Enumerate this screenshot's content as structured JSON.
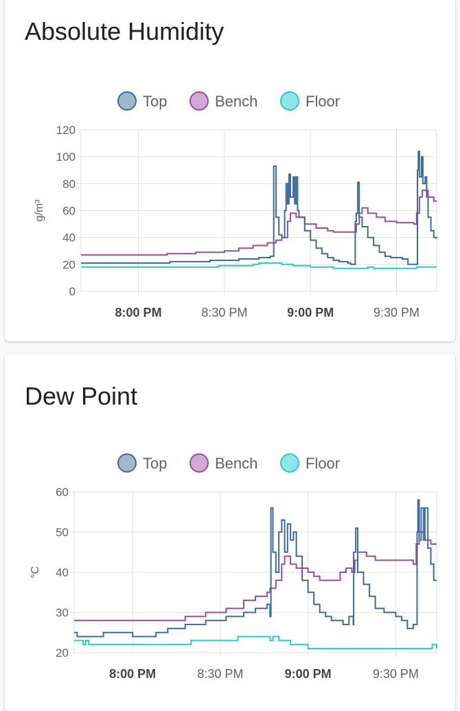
{
  "colors": {
    "Top": "#3d6a9a",
    "Bench": "#9a4aa3",
    "Floor": "#29c7c7"
  },
  "chart_data": [
    {
      "type": "line",
      "title": "Absolute Humidity",
      "ylabel": "g/m³",
      "xlabel": "",
      "x_unit": "minutes after 7:40 PM",
      "xlim": [
        0,
        124
      ],
      "ylim": [
        0,
        120
      ],
      "yticks": [
        "0",
        "20",
        "40",
        "60",
        "80",
        "100",
        "120"
      ],
      "xticks": [
        {
          "t": 20,
          "label": "8:00 PM",
          "bold": true
        },
        {
          "t": 50,
          "label": "8:30 PM",
          "bold": false
        },
        {
          "t": 80,
          "label": "9:00 PM",
          "bold": true
        },
        {
          "t": 110,
          "label": "9:30 PM",
          "bold": false
        }
      ],
      "grid": true,
      "legend": "top-center",
      "series": [
        {
          "name": "Top",
          "points": [
            [
              0,
              21
            ],
            [
              28,
              21
            ],
            [
              31,
              22
            ],
            [
              45,
              23
            ],
            [
              55,
              24
            ],
            [
              62,
              25
            ],
            [
              66,
              26
            ],
            [
              67,
              26
            ],
            [
              67.2,
              93
            ],
            [
              68,
              55
            ],
            [
              69,
              42
            ],
            [
              70,
              40
            ],
            [
              71,
              60
            ],
            [
              71.5,
              80
            ],
            [
              72,
              65
            ],
            [
              72.5,
              87
            ],
            [
              73,
              70
            ],
            [
              74,
              85
            ],
            [
              74.5,
              65
            ],
            [
              75,
              85
            ],
            [
              75.5,
              60
            ],
            [
              76,
              55
            ],
            [
              78,
              45
            ],
            [
              80,
              38
            ],
            [
              82,
              32
            ],
            [
              84,
              28
            ],
            [
              86,
              25
            ],
            [
              88,
              23
            ],
            [
              90,
              22
            ],
            [
              93,
              21
            ],
            [
              94,
              20
            ],
            [
              95.5,
              20
            ],
            [
              95.6,
              52
            ],
            [
              96,
              58
            ],
            [
              96.5,
              81
            ],
            [
              97,
              55
            ],
            [
              98,
              48
            ],
            [
              100,
              40
            ],
            [
              102,
              34
            ],
            [
              104,
              29
            ],
            [
              106,
              26
            ],
            [
              108,
              25
            ],
            [
              112,
              24
            ],
            [
              114,
              20
            ],
            [
              117,
              20
            ],
            [
              117.3,
              90
            ],
            [
              117.6,
              104
            ],
            [
              118,
              85
            ],
            [
              118.7,
              100
            ],
            [
              119.2,
              80
            ],
            [
              120,
              85
            ],
            [
              120.5,
              70
            ],
            [
              121,
              55
            ],
            [
              122,
              45
            ],
            [
              123,
              40
            ],
            [
              124,
              39
            ]
          ]
        },
        {
          "name": "Bench",
          "points": [
            [
              0,
              27
            ],
            [
              20,
              27
            ],
            [
              30,
              28
            ],
            [
              40,
              29
            ],
            [
              50,
              30
            ],
            [
              55,
              32
            ],
            [
              60,
              34
            ],
            [
              65,
              36
            ],
            [
              68,
              38
            ],
            [
              70,
              40
            ],
            [
              72,
              52
            ],
            [
              73,
              58
            ],
            [
              75,
              55
            ],
            [
              78,
              50
            ],
            [
              82,
              47
            ],
            [
              86,
              45
            ],
            [
              88,
              44
            ],
            [
              95,
              44
            ],
            [
              96,
              50
            ],
            [
              97,
              58
            ],
            [
              98,
              62
            ],
            [
              100,
              58
            ],
            [
              103,
              55
            ],
            [
              106,
              52
            ],
            [
              110,
              51
            ],
            [
              116,
              50
            ],
            [
              117,
              58
            ],
            [
              118,
              70
            ],
            [
              119,
              75
            ],
            [
              121,
              70
            ],
            [
              123,
              67
            ],
            [
              124,
              67
            ]
          ]
        },
        {
          "name": "Floor",
          "points": [
            [
              0,
              18
            ],
            [
              48,
              19
            ],
            [
              60,
              20
            ],
            [
              62,
              21
            ],
            [
              68,
              21
            ],
            [
              70,
              20
            ],
            [
              74,
              19
            ],
            [
              80,
              18
            ],
            [
              88,
              17
            ],
            [
              100,
              18
            ],
            [
              102,
              17
            ],
            [
              110,
              17
            ],
            [
              117,
              18
            ],
            [
              124,
              18
            ]
          ]
        }
      ]
    },
    {
      "type": "line",
      "title": "Dew Point",
      "ylabel": "°C",
      "xlabel": "",
      "x_unit": "minutes after 7:40 PM",
      "xlim": [
        0,
        124
      ],
      "ylim": [
        20,
        60
      ],
      "yticks": [
        "20",
        "30",
        "40",
        "50",
        "60"
      ],
      "xticks": [
        {
          "t": 20,
          "label": "8:00 PM",
          "bold": true
        },
        {
          "t": 50,
          "label": "8:30 PM",
          "bold": false
        },
        {
          "t": 80,
          "label": "9:00 PM",
          "bold": true
        },
        {
          "t": 110,
          "label": "9:30 PM",
          "bold": false
        }
      ],
      "grid": true,
      "legend": "top-center",
      "series": [
        {
          "name": "Top",
          "points": [
            [
              0,
              25
            ],
            [
              1,
              24
            ],
            [
              10,
              25
            ],
            [
              20,
              24
            ],
            [
              28,
              25
            ],
            [
              32,
              26
            ],
            [
              38,
              27
            ],
            [
              45,
              28
            ],
            [
              52,
              29
            ],
            [
              58,
              30
            ],
            [
              62,
              31
            ],
            [
              66,
              32
            ],
            [
              67,
              29
            ],
            [
              67.3,
              56
            ],
            [
              68,
              45
            ],
            [
              69,
              40
            ],
            [
              70,
              50
            ],
            [
              71,
              53
            ],
            [
              72,
              45
            ],
            [
              73,
              52
            ],
            [
              74,
              48
            ],
            [
              75,
              50
            ],
            [
              76,
              44
            ],
            [
              78,
              38
            ],
            [
              80,
              35
            ],
            [
              82,
              32
            ],
            [
              84,
              30
            ],
            [
              86,
              29
            ],
            [
              88,
              28
            ],
            [
              90,
              28
            ],
            [
              92,
              27
            ],
            [
              94,
              29
            ],
            [
              95.5,
              27
            ],
            [
              95.6,
              45
            ],
            [
              96.3,
              51
            ],
            [
              97,
              40
            ],
            [
              99,
              37
            ],
            [
              101,
              34
            ],
            [
              103,
              31
            ],
            [
              106,
              30
            ],
            [
              110,
              29
            ],
            [
              112,
              28
            ],
            [
              114,
              26
            ],
            [
              116,
              27
            ],
            [
              117.3,
              50
            ],
            [
              117.6,
              58
            ],
            [
              118,
              48
            ],
            [
              118.7,
              56
            ],
            [
              119.5,
              48
            ],
            [
              120,
              56
            ],
            [
              121,
              46
            ],
            [
              122,
              42
            ],
            [
              123,
              38
            ],
            [
              124,
              38
            ]
          ]
        },
        {
          "name": "Bench",
          "points": [
            [
              0,
              28
            ],
            [
              30,
              28
            ],
            [
              38,
              29
            ],
            [
              45,
              30
            ],
            [
              52,
              31
            ],
            [
              58,
              33
            ],
            [
              62,
              34
            ],
            [
              66,
              35
            ],
            [
              67,
              36
            ],
            [
              69,
              38
            ],
            [
              71,
              42
            ],
            [
              72,
              44
            ],
            [
              74,
              42
            ],
            [
              76,
              41
            ],
            [
              80,
              40
            ],
            [
              82,
              39
            ],
            [
              84,
              38
            ],
            [
              90,
              38
            ],
            [
              91,
              40
            ],
            [
              93,
              41
            ],
            [
              95,
              40
            ],
            [
              96,
              43
            ],
            [
              97,
              45
            ],
            [
              98,
              45
            ],
            [
              100,
              44
            ],
            [
              103,
              43
            ],
            [
              110,
              43
            ],
            [
              116,
              42
            ],
            [
              117,
              47
            ],
            [
              118,
              50
            ],
            [
              120,
              48
            ],
            [
              122,
              47
            ],
            [
              124,
              47
            ]
          ]
        },
        {
          "name": "Floor",
          "points": [
            [
              0,
              23
            ],
            [
              3,
              22
            ],
            [
              4,
              23
            ],
            [
              5,
              22
            ],
            [
              30,
              22
            ],
            [
              40,
              23
            ],
            [
              55,
              23
            ],
            [
              56,
              24
            ],
            [
              66,
              24
            ],
            [
              67,
              23
            ],
            [
              68,
              24
            ],
            [
              70,
              23
            ],
            [
              74,
              22
            ],
            [
              80,
              21
            ],
            [
              122,
              21
            ],
            [
              122.5,
              22
            ],
            [
              124,
              21
            ]
          ]
        }
      ]
    }
  ]
}
